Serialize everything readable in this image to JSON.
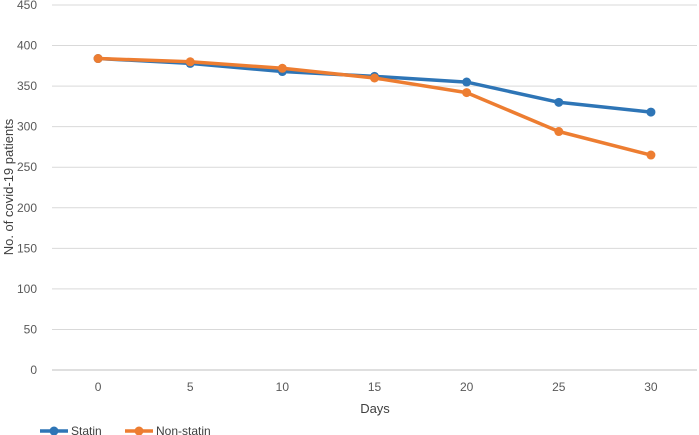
{
  "chart_data": {
    "type": "line",
    "title": "",
    "xlabel": "Days",
    "ylabel": "No. of covid-19 patients",
    "x": [
      0,
      5,
      10,
      15,
      20,
      25,
      30
    ],
    "xticks": [
      "0",
      "5",
      "10",
      "15",
      "20",
      "25",
      "30"
    ],
    "yticks": [
      "0",
      "50",
      "100",
      "150",
      "200",
      "250",
      "300",
      "350",
      "400",
      "450"
    ],
    "ylim": [
      0,
      450
    ],
    "grid": "horizontal",
    "legend": "bottom-left",
    "series": [
      {
        "name": "Statin",
        "color": "#2E75B6",
        "values": [
          384,
          378,
          368,
          362,
          355,
          330,
          318
        ]
      },
      {
        "name": "Non-statin",
        "color": "#ED7D31",
        "values": [
          384,
          380,
          372,
          360,
          342,
          294,
          265
        ]
      }
    ]
  }
}
